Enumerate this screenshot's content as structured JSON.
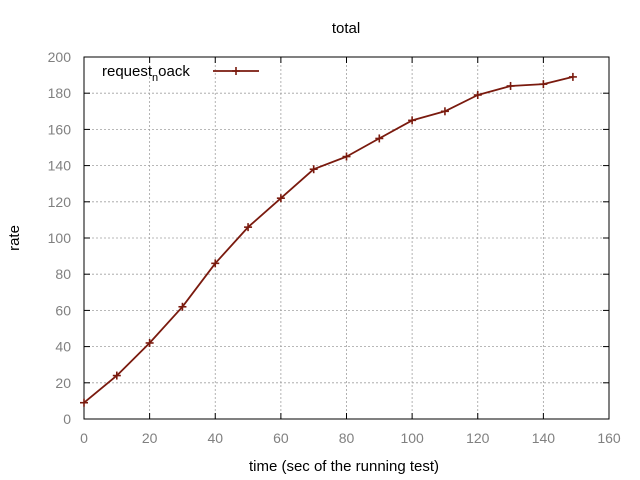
{
  "chart_data": {
    "type": "line",
    "title": "total",
    "xlabel": "time (sec of the running test)",
    "ylabel": "rate",
    "xlim": [
      0,
      160
    ],
    "ylim": [
      0,
      200
    ],
    "xticks": [
      0,
      20,
      40,
      60,
      80,
      100,
      120,
      140,
      160
    ],
    "yticks": [
      0,
      20,
      40,
      60,
      80,
      100,
      120,
      140,
      160,
      180,
      200
    ],
    "grid": true,
    "legend_position": "top-left",
    "series": [
      {
        "name_main": "request",
        "name_sub": "n",
        "name_rest": "oack",
        "color": "#7a1a0e",
        "x": [
          0,
          10,
          20,
          30,
          40,
          50,
          60,
          70,
          80,
          90,
          100,
          110,
          120,
          130,
          140,
          149
        ],
        "y": [
          9,
          24,
          42,
          62,
          86,
          106,
          122,
          138,
          145,
          155,
          165,
          170,
          179,
          184,
          185,
          189
        ]
      }
    ]
  }
}
